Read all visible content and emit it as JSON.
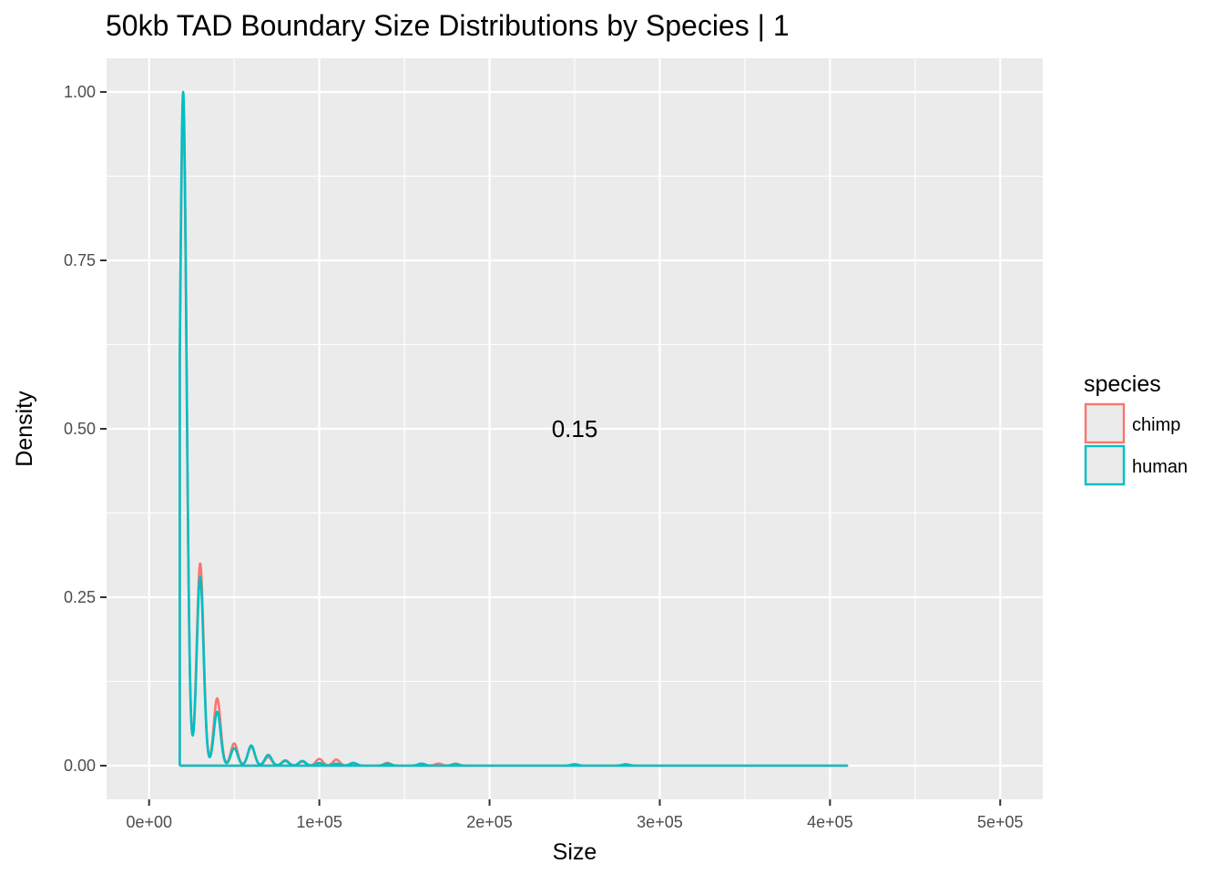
{
  "chart_data": {
    "type": "line",
    "title": "50kb TAD Boundary Size Distributions by Species | 1",
    "xlabel": "Size",
    "ylabel": "Density",
    "xlim": [
      -25000,
      525000
    ],
    "ylim": [
      -0.05,
      1.05
    ],
    "x_ticks": [
      {
        "value": 0,
        "label": "0e+00"
      },
      {
        "value": 100000,
        "label": "1e+05"
      },
      {
        "value": 200000,
        "label": "2e+05"
      },
      {
        "value": 300000,
        "label": "3e+05"
      },
      {
        "value": 400000,
        "label": "4e+05"
      },
      {
        "value": 500000,
        "label": "5e+05"
      }
    ],
    "y_ticks": [
      {
        "value": 0,
        "label": "0.00"
      },
      {
        "value": 0.25,
        "label": "0.25"
      },
      {
        "value": 0.5,
        "label": "0.50"
      },
      {
        "value": 0.75,
        "label": "0.75"
      },
      {
        "value": 1.0,
        "label": "1.00"
      }
    ],
    "grid": true,
    "legend": {
      "title": "species",
      "position": "right"
    },
    "annotation": {
      "text": "0.15",
      "x": 250000,
      "y": 0.5
    },
    "series": [
      {
        "name": "chimp",
        "color": "#F8766D",
        "x_start": 18000,
        "x_end": 410000,
        "peaks": [
          [
            20000,
            0.97
          ],
          [
            30000,
            0.3
          ],
          [
            40000,
            0.1
          ],
          [
            50000,
            0.033
          ],
          [
            60000,
            0.028
          ],
          [
            70000,
            0.013
          ],
          [
            80000,
            0.008
          ],
          [
            90000,
            0.006
          ],
          [
            100000,
            0.01
          ],
          [
            110000,
            0.009
          ],
          [
            120000,
            0.004
          ],
          [
            140000,
            0.004
          ],
          [
            160000,
            0.003
          ],
          [
            170000,
            0.003
          ],
          [
            180000,
            0.003
          ],
          [
            250000,
            0.002
          ],
          [
            280000,
            0.002
          ]
        ]
      },
      {
        "name": "human",
        "color": "#00BFC4",
        "x_start": 18000,
        "x_end": 410000,
        "peaks": [
          [
            20000,
            1.0
          ],
          [
            30000,
            0.28
          ],
          [
            40000,
            0.08
          ],
          [
            50000,
            0.026
          ],
          [
            60000,
            0.03
          ],
          [
            70000,
            0.016
          ],
          [
            80000,
            0.007
          ],
          [
            90000,
            0.007
          ],
          [
            100000,
            0.004
          ],
          [
            110000,
            0.003
          ],
          [
            120000,
            0.004
          ],
          [
            140000,
            0.003
          ],
          [
            160000,
            0.003
          ],
          [
            180000,
            0.002
          ],
          [
            250000,
            0.002
          ],
          [
            280000,
            0.002
          ]
        ]
      }
    ]
  }
}
